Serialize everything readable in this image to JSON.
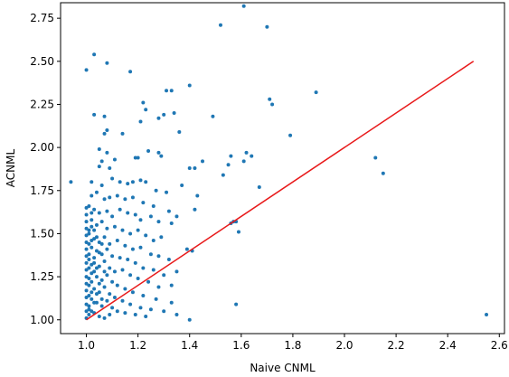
{
  "chart_data": {
    "type": "scatter",
    "title": "",
    "xlabel": "Naive CNML",
    "ylabel": "ACNML",
    "xlim": [
      0.9,
      2.62
    ],
    "ylim": [
      0.92,
      2.84
    ],
    "xticks": [
      "1.0",
      "1.2",
      "1.4",
      "1.6",
      "1.8",
      "2.0",
      "2.2",
      "2.4",
      "2.6"
    ],
    "yticks": [
      "1.00",
      "1.25",
      "1.50",
      "1.75",
      "2.00",
      "2.25",
      "2.50",
      "2.75"
    ],
    "grid": false,
    "legend": "none",
    "series": [
      {
        "kind": "scatter",
        "color": "#1f77b4",
        "points": [
          [
            1.61,
            2.82
          ],
          [
            1.52,
            2.71
          ],
          [
            1.7,
            2.7
          ],
          [
            1.03,
            2.54
          ],
          [
            1.08,
            2.49
          ],
          [
            1.0,
            2.45
          ],
          [
            1.17,
            2.44
          ],
          [
            1.71,
            2.28
          ],
          [
            1.72,
            2.25
          ],
          [
            1.89,
            2.32
          ],
          [
            1.4,
            2.36
          ],
          [
            1.31,
            2.33
          ],
          [
            1.33,
            2.33
          ],
          [
            1.22,
            2.26
          ],
          [
            1.23,
            2.22
          ],
          [
            1.3,
            2.19
          ],
          [
            1.34,
            2.2
          ],
          [
            1.28,
            2.17
          ],
          [
            1.03,
            2.19
          ],
          [
            1.07,
            2.18
          ],
          [
            1.49,
            2.18
          ],
          [
            1.36,
            2.09
          ],
          [
            1.21,
            2.15
          ],
          [
            1.14,
            2.08
          ],
          [
            1.08,
            2.1
          ],
          [
            1.07,
            2.08
          ],
          [
            1.79,
            2.07
          ],
          [
            1.05,
            1.99
          ],
          [
            1.08,
            1.97
          ],
          [
            1.06,
            1.92
          ],
          [
            1.24,
            1.98
          ],
          [
            1.28,
            1.97
          ],
          [
            1.29,
            1.95
          ],
          [
            1.62,
            1.97
          ],
          [
            1.64,
            1.95
          ],
          [
            1.56,
            1.95
          ],
          [
            1.61,
            1.92
          ],
          [
            1.19,
            1.94
          ],
          [
            1.2,
            1.94
          ],
          [
            1.11,
            1.93
          ],
          [
            1.05,
            1.89
          ],
          [
            1.09,
            1.88
          ],
          [
            1.4,
            1.88
          ],
          [
            1.42,
            1.88
          ],
          [
            1.45,
            1.92
          ],
          [
            1.53,
            1.84
          ],
          [
            1.55,
            1.9
          ],
          [
            2.12,
            1.94
          ],
          [
            2.15,
            1.85
          ],
          [
            0.94,
            1.8
          ],
          [
            1.02,
            1.8
          ],
          [
            1.06,
            1.78
          ],
          [
            1.1,
            1.82
          ],
          [
            1.13,
            1.8
          ],
          [
            1.16,
            1.79
          ],
          [
            1.18,
            1.8
          ],
          [
            1.21,
            1.81
          ],
          [
            1.23,
            1.8
          ],
          [
            1.27,
            1.75
          ],
          [
            1.31,
            1.74
          ],
          [
            1.37,
            1.78
          ],
          [
            1.43,
            1.72
          ],
          [
            1.67,
            1.77
          ],
          [
            1.02,
            1.72
          ],
          [
            1.04,
            1.74
          ],
          [
            1.07,
            1.7
          ],
          [
            1.09,
            1.71
          ],
          [
            1.12,
            1.72
          ],
          [
            1.15,
            1.7
          ],
          [
            1.18,
            1.71
          ],
          [
            1.22,
            1.68
          ],
          [
            1.26,
            1.66
          ],
          [
            1.32,
            1.63
          ],
          [
            1.35,
            1.6
          ],
          [
            1.42,
            1.64
          ],
          [
            1.01,
            1.66
          ],
          [
            1.03,
            1.64
          ],
          [
            1.05,
            1.62
          ],
          [
            1.08,
            1.63
          ],
          [
            1.1,
            1.6
          ],
          [
            1.13,
            1.64
          ],
          [
            1.16,
            1.62
          ],
          [
            1.19,
            1.61
          ],
          [
            1.21,
            1.58
          ],
          [
            1.25,
            1.6
          ],
          [
            1.28,
            1.57
          ],
          [
            1.33,
            1.56
          ],
          [
            1.56,
            1.56
          ],
          [
            1.57,
            1.57
          ],
          [
            1.58,
            1.57
          ],
          [
            1.59,
            1.51
          ],
          [
            1.02,
            1.58
          ],
          [
            1.04,
            1.55
          ],
          [
            1.06,
            1.57
          ],
          [
            1.08,
            1.53
          ],
          [
            1.11,
            1.54
          ],
          [
            1.14,
            1.52
          ],
          [
            1.17,
            1.5
          ],
          [
            1.2,
            1.52
          ],
          [
            1.23,
            1.49
          ],
          [
            1.26,
            1.46
          ],
          [
            1.29,
            1.48
          ],
          [
            1.39,
            1.41
          ],
          [
            1.41,
            1.4
          ],
          [
            1.01,
            1.5
          ],
          [
            1.03,
            1.47
          ],
          [
            1.05,
            1.45
          ],
          [
            1.07,
            1.48
          ],
          [
            1.09,
            1.44
          ],
          [
            1.12,
            1.46
          ],
          [
            1.15,
            1.43
          ],
          [
            1.18,
            1.41
          ],
          [
            1.21,
            1.42
          ],
          [
            1.25,
            1.38
          ],
          [
            1.28,
            1.37
          ],
          [
            1.32,
            1.35
          ],
          [
            1.02,
            1.42
          ],
          [
            1.04,
            1.4
          ],
          [
            1.06,
            1.38
          ],
          [
            1.08,
            1.41
          ],
          [
            1.1,
            1.37
          ],
          [
            1.13,
            1.36
          ],
          [
            1.16,
            1.35
          ],
          [
            1.19,
            1.33
          ],
          [
            1.22,
            1.3
          ],
          [
            1.26,
            1.29
          ],
          [
            1.3,
            1.26
          ],
          [
            1.35,
            1.28
          ],
          [
            1.01,
            1.35
          ],
          [
            1.03,
            1.33
          ],
          [
            1.05,
            1.31
          ],
          [
            1.07,
            1.34
          ],
          [
            1.09,
            1.3
          ],
          [
            1.11,
            1.28
          ],
          [
            1.14,
            1.29
          ],
          [
            1.17,
            1.26
          ],
          [
            1.2,
            1.24
          ],
          [
            1.24,
            1.22
          ],
          [
            1.28,
            1.19
          ],
          [
            1.33,
            1.2
          ],
          [
            1.02,
            1.27
          ],
          [
            1.04,
            1.25
          ],
          [
            1.06,
            1.23
          ],
          [
            1.08,
            1.26
          ],
          [
            1.1,
            1.22
          ],
          [
            1.12,
            1.2
          ],
          [
            1.15,
            1.18
          ],
          [
            1.18,
            1.16
          ],
          [
            1.22,
            1.14
          ],
          [
            1.27,
            1.12
          ],
          [
            1.33,
            1.1
          ],
          [
            1.01,
            1.2
          ],
          [
            1.03,
            1.18
          ],
          [
            1.05,
            1.16
          ],
          [
            1.07,
            1.19
          ],
          [
            1.09,
            1.15
          ],
          [
            1.11,
            1.13
          ],
          [
            1.14,
            1.11
          ],
          [
            1.17,
            1.09
          ],
          [
            1.21,
            1.07
          ],
          [
            1.25,
            1.06
          ],
          [
            1.3,
            1.05
          ],
          [
            1.35,
            1.03
          ],
          [
            1.02,
            1.12
          ],
          [
            1.04,
            1.1
          ],
          [
            1.06,
            1.08
          ],
          [
            1.08,
            1.11
          ],
          [
            1.1,
            1.07
          ],
          [
            1.12,
            1.05
          ],
          [
            1.15,
            1.04
          ],
          [
            1.19,
            1.03
          ],
          [
            1.23,
            1.02
          ],
          [
            1.01,
            1.06
          ],
          [
            1.03,
            1.04
          ],
          [
            1.05,
            1.02
          ],
          [
            1.07,
            1.01
          ],
          [
            1.09,
            1.03
          ],
          [
            1.4,
            1.0
          ],
          [
            1.58,
            1.09
          ],
          [
            2.55,
            1.03
          ],
          [
            1.0,
            1.01
          ],
          [
            1.0,
            1.05
          ],
          [
            1.0,
            1.09
          ],
          [
            1.0,
            1.13
          ],
          [
            1.0,
            1.17
          ],
          [
            1.0,
            1.21
          ],
          [
            1.0,
            1.25
          ],
          [
            1.0,
            1.29
          ],
          [
            1.0,
            1.33
          ],
          [
            1.0,
            1.37
          ],
          [
            1.0,
            1.41
          ],
          [
            1.0,
            1.45
          ],
          [
            1.0,
            1.49
          ],
          [
            1.0,
            1.53
          ],
          [
            1.0,
            1.57
          ],
          [
            1.0,
            1.61
          ],
          [
            1.0,
            1.65
          ],
          [
            1.01,
            1.03
          ],
          [
            1.01,
            1.08
          ],
          [
            1.01,
            1.14
          ],
          [
            1.01,
            1.24
          ],
          [
            1.01,
            1.3
          ],
          [
            1.01,
            1.38
          ],
          [
            1.01,
            1.44
          ],
          [
            1.01,
            1.52
          ],
          [
            1.02,
            1.05
          ],
          [
            1.02,
            1.16
          ],
          [
            1.02,
            1.22
          ],
          [
            1.02,
            1.32
          ],
          [
            1.02,
            1.46
          ],
          [
            1.02,
            1.54
          ],
          [
            1.02,
            1.62
          ],
          [
            1.03,
            1.1
          ],
          [
            1.03,
            1.28
          ],
          [
            1.03,
            1.36
          ],
          [
            1.03,
            1.52
          ],
          [
            1.04,
            1.15
          ],
          [
            1.04,
            1.3
          ],
          [
            1.04,
            1.48
          ],
          [
            1.05,
            1.21
          ],
          [
            1.05,
            1.39
          ],
          [
            1.06,
            1.12
          ],
          [
            1.06,
            1.44
          ],
          [
            1.07,
            1.28
          ]
        ]
      },
      {
        "kind": "line",
        "color": "#e8191a",
        "points": [
          [
            1.0,
            1.0
          ],
          [
            2.5,
            2.5
          ]
        ]
      }
    ]
  }
}
